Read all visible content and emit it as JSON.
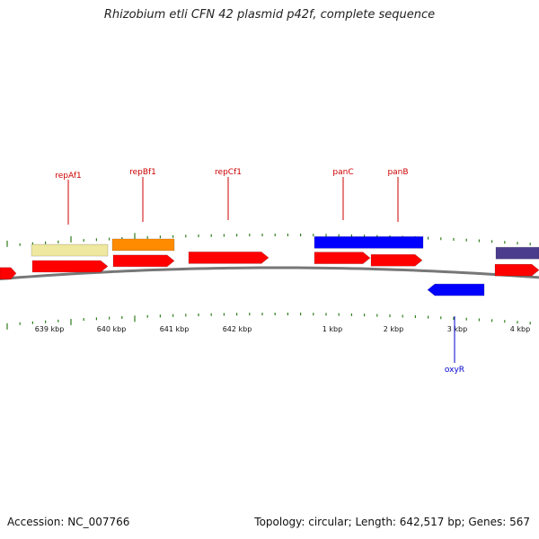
{
  "title": "Rhizobium etli CFN 42 plasmid p42f, complete sequence",
  "footer": {
    "accession": "Accession: NC_007766",
    "stats": "Topology: circular; Length: 642,517 bp; Genes: 567"
  },
  "colors": {
    "label_red": "#cc0000",
    "label_blue": "#0000cc",
    "tick_green": "#2e7d1a",
    "backbone": "#777777"
  },
  "tick_labels": [
    "639 kbp",
    "640 kbp",
    "641 kbp",
    "642 kbp",
    "1 kbp",
    "2 kbp",
    "3 kbp",
    "4 kbp"
  ],
  "gene_labels": [
    {
      "name": "repAf1",
      "color": "#cc0000"
    },
    {
      "name": "repBf1",
      "color": "#cc0000"
    },
    {
      "name": "repCf1",
      "color": "#cc0000"
    },
    {
      "name": "panC",
      "color": "#cc0000"
    },
    {
      "name": "panB",
      "color": "#cc0000"
    },
    {
      "name": "oxyR",
      "color": "#0000cc"
    }
  ],
  "features": [
    {
      "name": "cds-edge-left",
      "color": "#ff0000",
      "strand": "+"
    },
    {
      "name": "cds-repAf1",
      "color": "#ff0000",
      "strand": "+"
    },
    {
      "name": "cds-repBf1",
      "color": "#ff0000",
      "strand": "+"
    },
    {
      "name": "cds-repCf1",
      "color": "#ff0000",
      "strand": "+"
    },
    {
      "name": "cds-panC",
      "color": "#ff0000",
      "strand": "+"
    },
    {
      "name": "cds-panB",
      "color": "#ff0000",
      "strand": "+"
    },
    {
      "name": "cds-edge-right",
      "color": "#ff0000",
      "strand": "+"
    },
    {
      "name": "cds-oxyR",
      "color": "#0000ff",
      "strand": "-"
    },
    {
      "name": "class-yellow",
      "color": "#eee8a0",
      "strand": "+"
    },
    {
      "name": "class-orange",
      "color": "#ff8c00",
      "strand": "+"
    },
    {
      "name": "class-blue",
      "color": "#0000ff",
      "strand": "+"
    },
    {
      "name": "class-purple",
      "color": "#4b3c8c",
      "strand": "+"
    }
  ]
}
